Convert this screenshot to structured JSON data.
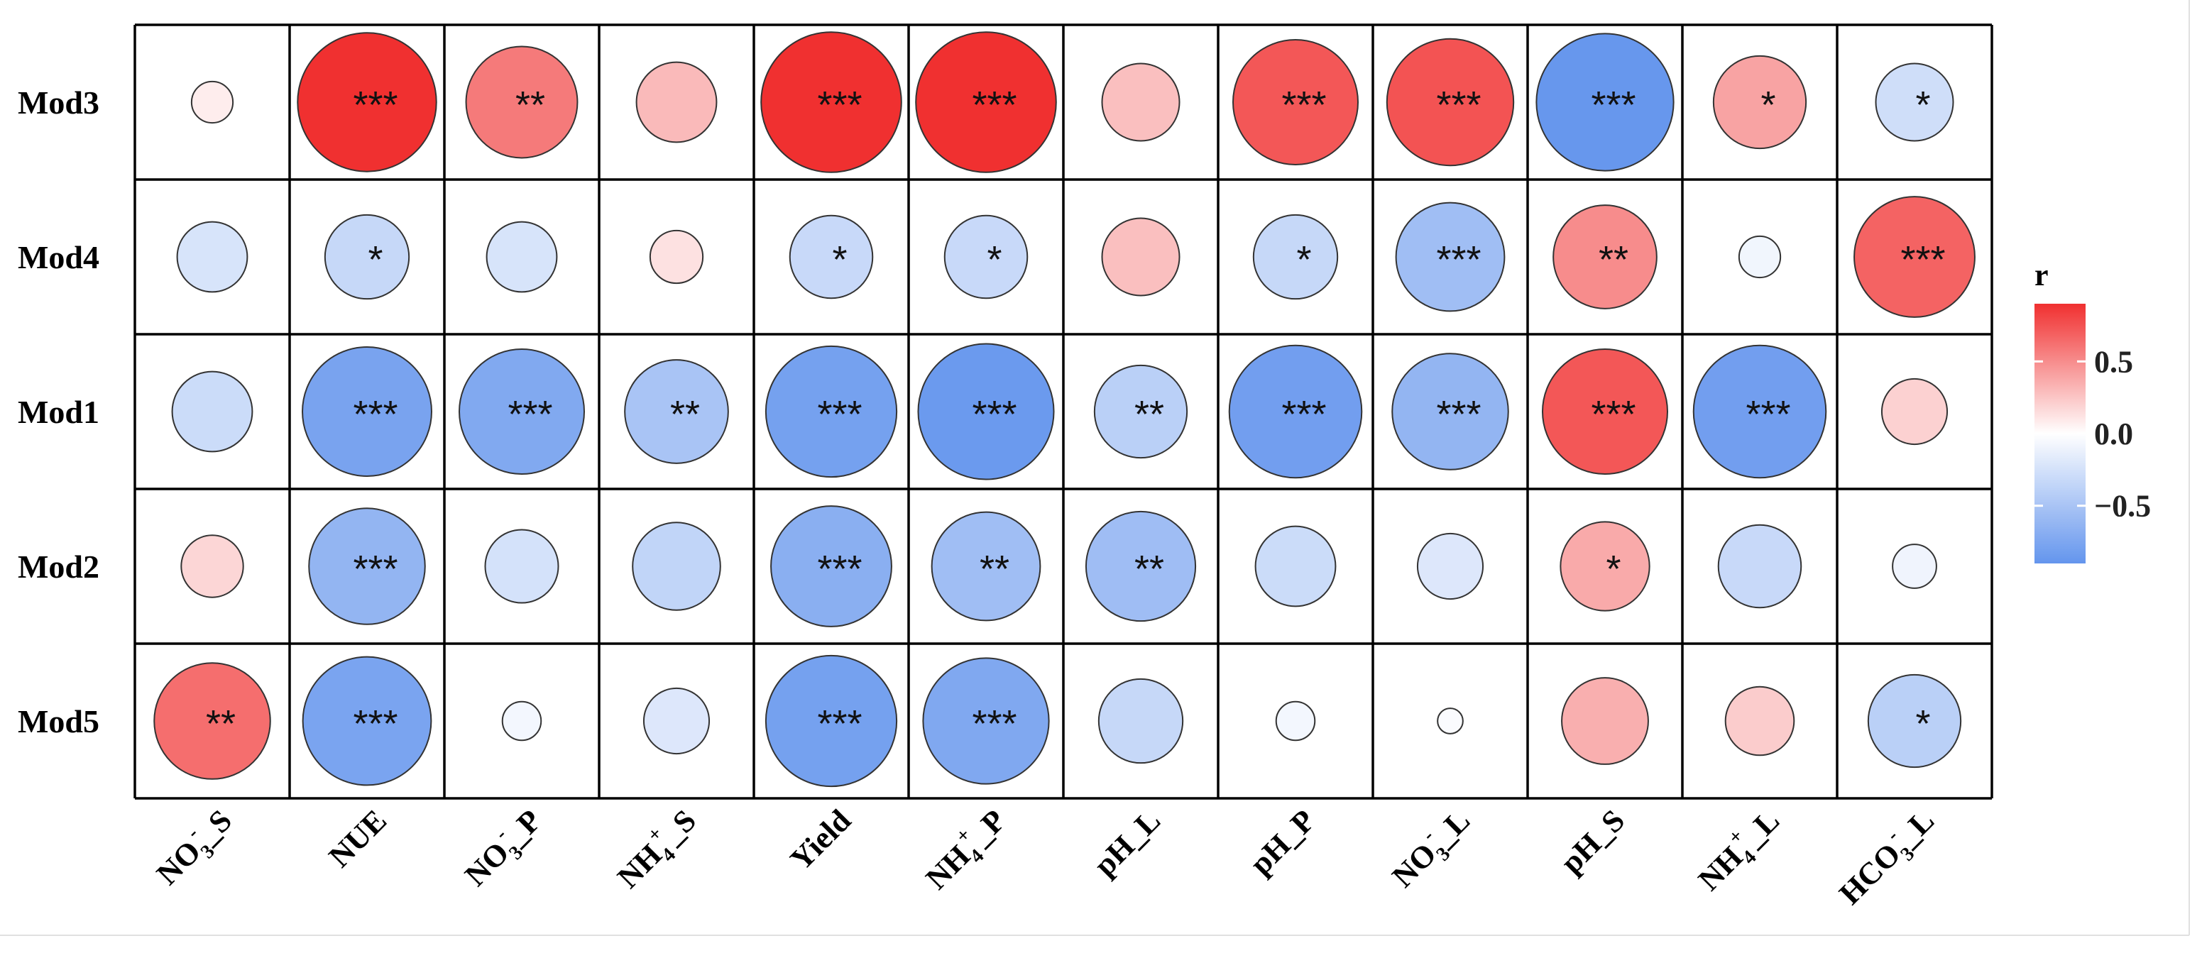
{
  "chart_data": {
    "type": "heatmap",
    "title": "",
    "rows": [
      "Mod3",
      "Mod4",
      "Mod1",
      "Mod2",
      "Mod5"
    ],
    "columns": [
      {
        "base": "NO",
        "sub": "3",
        "sup": "-",
        "suffix": "_S"
      },
      {
        "base": "NUE",
        "sub": "",
        "sup": "",
        "suffix": ""
      },
      {
        "base": "NO",
        "sub": "3",
        "sup": "-",
        "suffix": "_P"
      },
      {
        "base": "NH",
        "sub": "4",
        "sup": "+",
        "suffix": "_S"
      },
      {
        "base": "Yield",
        "sub": "",
        "sup": "",
        "suffix": ""
      },
      {
        "base": "NH",
        "sub": "4",
        "sup": "+",
        "suffix": "_P"
      },
      {
        "base": "pH_L",
        "sub": "",
        "sup": "",
        "suffix": ""
      },
      {
        "base": "pH_P",
        "sub": "",
        "sup": "",
        "suffix": ""
      },
      {
        "base": "NO",
        "sub": "3",
        "sup": "-",
        "suffix": "_L"
      },
      {
        "base": "pH_S",
        "sub": "",
        "sup": "",
        "suffix": ""
      },
      {
        "base": "NH",
        "sub": "4",
        "sup": "+",
        "suffix": "_L"
      },
      {
        "base": "HCO",
        "sub": "3",
        "sup": "-",
        "suffix": "_L"
      }
    ],
    "values": [
      [
        0.08,
        0.9,
        0.58,
        0.3,
        0.92,
        0.92,
        0.28,
        0.73,
        0.75,
        -0.88,
        0.4,
        -0.28
      ],
      [
        -0.23,
        -0.33,
        -0.23,
        0.13,
        -0.32,
        -0.32,
        0.28,
        -0.33,
        -0.55,
        0.5,
        -0.08,
        0.68
      ],
      [
        -0.3,
        -0.78,
        -0.73,
        -0.5,
        -0.8,
        -0.86,
        -0.4,
        -0.82,
        -0.63,
        0.73,
        -0.82,
        0.2
      ],
      [
        0.18,
        -0.63,
        -0.25,
        -0.36,
        -0.68,
        -0.55,
        -0.56,
        -0.3,
        -0.2,
        0.37,
        -0.32,
        -0.09
      ],
      [
        0.63,
        -0.77,
        -0.07,
        -0.2,
        -0.8,
        -0.74,
        -0.33,
        -0.07,
        -0.03,
        0.35,
        0.22,
        -0.4
      ]
    ],
    "significance": [
      [
        "",
        "***",
        "**",
        "",
        "***",
        "***",
        "",
        "***",
        "***",
        "***",
        "*",
        "*"
      ],
      [
        "",
        "*",
        "",
        "",
        "*",
        "*",
        "",
        "*",
        "***",
        "**",
        "",
        "***"
      ],
      [
        "",
        "***",
        "***",
        "**",
        "***",
        "***",
        "**",
        "***",
        "***",
        "***",
        "***",
        ""
      ],
      [
        "",
        "***",
        "",
        "",
        "***",
        "**",
        "**",
        "",
        "",
        "*",
        "",
        ""
      ],
      [
        "**",
        "***",
        "",
        "",
        "***",
        "***",
        "",
        "",
        "",
        "",
        "",
        "*"
      ]
    ],
    "colorscale": {
      "low": "#6495ed",
      "mid": "#ffffff",
      "high": "#f03030",
      "min": -0.9,
      "max": 0.9
    },
    "legend": {
      "title": "r",
      "ticks": [
        0.5,
        0.0,
        -0.5
      ],
      "tick_labels": [
        "0.5",
        "0.0",
        "−0.5"
      ],
      "placement": "right"
    }
  }
}
